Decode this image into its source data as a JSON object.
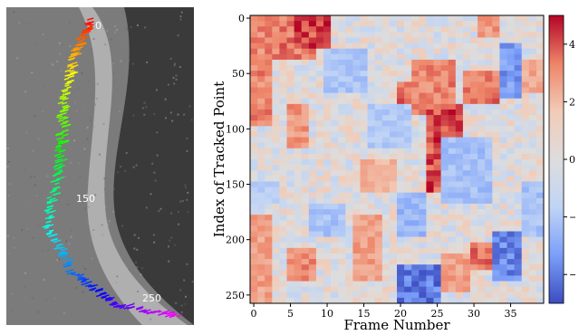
{
  "left_panel": {
    "annotations": [
      "0",
      "150",
      "250"
    ]
  },
  "chart_data": {
    "type": "heatmap",
    "title": "",
    "xlabel": "Frame Number",
    "ylabel": "Index of Tracked Point",
    "x_ticks": [
      0,
      5,
      10,
      15,
      20,
      25,
      30,
      35
    ],
    "y_ticks": [
      0,
      50,
      100,
      150,
      200,
      250
    ],
    "xlim": [
      0,
      40
    ],
    "ylim": [
      0,
      260
    ],
    "colorbar": {
      "ticks": [
        4,
        2,
        0,
        -2,
        -4
      ],
      "range": [
        -5,
        5
      ],
      "colormap": [
        "#3b4cc0",
        "#7b9ff9",
        "#c0d4f5",
        "#dddddd",
        "#f2cbb7",
        "#ee8468",
        "#b40426"
      ]
    },
    "cell_grid": {
      "columns": 40,
      "rows": 52,
      "rows_per_index": 5
    },
    "hot_regions": [
      {
        "frames": [
          0,
          3
        ],
        "indices": [
          0,
          100
        ],
        "value": 3.5
      },
      {
        "frames": [
          3,
          9
        ],
        "indices": [
          0,
          40
        ],
        "value": 3.8
      },
      {
        "frames": [
          6,
          11
        ],
        "indices": [
          0,
          30
        ],
        "value": 4.6
      },
      {
        "frames": [
          5,
          8
        ],
        "indices": [
          80,
          120
        ],
        "value": 3.2
      },
      {
        "frames": [
          20,
          24
        ],
        "indices": [
          60,
          90
        ],
        "value": 4.2
      },
      {
        "frames": [
          24,
          29
        ],
        "indices": [
          80,
          160
        ],
        "value": 4.6
      },
      {
        "frames": [
          22,
          28
        ],
        "indices": [
          40,
          80
        ],
        "value": 3.6
      },
      {
        "frames": [
          29,
          34
        ],
        "indices": [
          50,
          80
        ],
        "value": 3.8
      },
      {
        "frames": [
          31,
          34
        ],
        "indices": [
          0,
          20
        ],
        "value": 3.2
      },
      {
        "frames": [
          0,
          3
        ],
        "indices": [
          180,
          260
        ],
        "value": 3.0
      },
      {
        "frames": [
          5,
          9
        ],
        "indices": [
          210,
          240
        ],
        "value": 3.4
      },
      {
        "frames": [
          14,
          18
        ],
        "indices": [
          180,
          240
        ],
        "value": 3.0
      },
      {
        "frames": [
          30,
          33
        ],
        "indices": [
          205,
          230
        ],
        "value": 3.8
      },
      {
        "frames": [
          26,
          30
        ],
        "indices": [
          215,
          250
        ],
        "value": 3.0
      },
      {
        "frames": [
          15,
          20
        ],
        "indices": [
          130,
          160
        ],
        "value": 2.5
      },
      {
        "frames": [
          37,
          40
        ],
        "indices": [
          40,
          70
        ],
        "value": 2.8
      }
    ],
    "cold_regions": [
      {
        "frames": [
          20,
          26
        ],
        "indices": [
          225,
          260
        ],
        "value": -4.5
      },
      {
        "frames": [
          33,
          37
        ],
        "indices": [
          195,
          240
        ],
        "value": -4.2
      },
      {
        "frames": [
          34,
          37
        ],
        "indices": [
          25,
          75
        ],
        "value": -3.8
      },
      {
        "frames": [
          10,
          16
        ],
        "indices": [
          30,
          70
        ],
        "value": -2.4
      },
      {
        "frames": [
          16,
          22
        ],
        "indices": [
          80,
          120
        ],
        "value": -2.2
      },
      {
        "frames": [
          26,
          33
        ],
        "indices": [
          110,
          170
        ],
        "value": -2.6
      },
      {
        "frames": [
          37,
          40
        ],
        "indices": [
          150,
          200
        ],
        "value": -2.5
      },
      {
        "frames": [
          20,
          24
        ],
        "indices": [
          160,
          200
        ],
        "value": -2.8
      },
      {
        "frames": [
          8,
          13
        ],
        "indices": [
          170,
          200
        ],
        "value": -2.5
      },
      {
        "frames": [
          0,
          4
        ],
        "indices": [
          150,
          170
        ],
        "value": -2.0
      }
    ]
  }
}
